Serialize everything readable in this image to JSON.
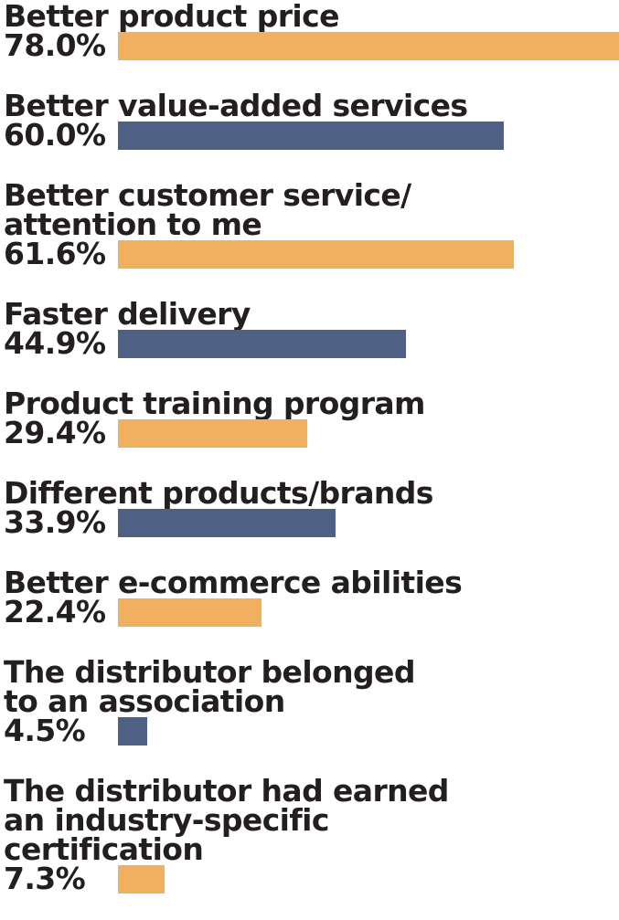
{
  "chart_data": {
    "type": "bar",
    "orientation": "horizontal",
    "xlim": [
      0,
      78
    ],
    "colors": [
      "#f0b060",
      "#4f6085"
    ],
    "categories": [
      [
        "Better product price"
      ],
      [
        "Better value-added services"
      ],
      [
        "Better customer service/",
        "attention to me"
      ],
      [
        "Faster delivery"
      ],
      [
        "Product training program"
      ],
      [
        "Different products/brands"
      ],
      [
        "Better e-commerce abilities"
      ],
      [
        "The distributor belonged",
        "to an association"
      ],
      [
        "The distributor had earned",
        "an industry-specific",
        "certification"
      ]
    ],
    "values": [
      78.0,
      60.0,
      61.6,
      44.9,
      29.4,
      33.9,
      22.4,
      4.5,
      7.3
    ],
    "value_labels": [
      "78.0%",
      "60.0%",
      "61.6%",
      "44.9%",
      "29.4%",
      "33.9%",
      "22.4%",
      "4.5%",
      "7.3%"
    ]
  }
}
